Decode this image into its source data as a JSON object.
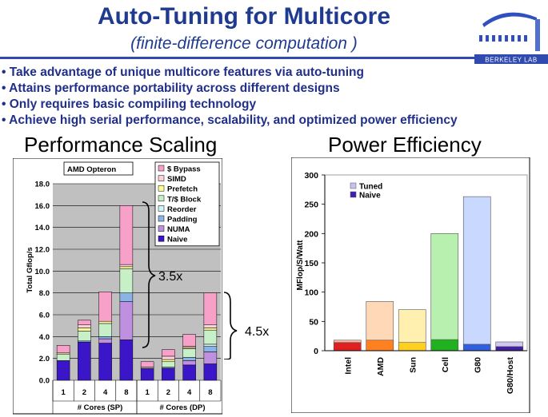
{
  "slide": {
    "title": "Auto-Tuning for Multicore",
    "subtitle": "(finite-difference computation )",
    "logo_text": "BERKELEY LAB",
    "bullets": [
      "Take advantage of unique multicore features via auto-tuning",
      "Attains performance portability across different designs",
      "Only requires basic compiling technology",
      "Achieve high serial performance, scalability, and optimized power efficiency"
    ],
    "left_panel_title": "Performance Scaling",
    "right_panel_title": "Power Efficiency"
  },
  "colors": {
    "title_blue": "#1f3b8f",
    "$ Bypass": "#f7a0c8",
    "SIMD": "#ffd0dc",
    "Prefetch": "#ffff99",
    "T/$ Block": "#c8f0c8",
    "Reorder": "#d0f4f8",
    "Padding": "#8ab4e8",
    "NUMA": "#c090e0",
    "Naive": "#3b16c8"
  },
  "chart_data": [
    {
      "type": "bar",
      "stacked": true,
      "title": "",
      "label": "AMD Opteron",
      "xlabel": "",
      "ylabel": "Total Gflop/s",
      "ylim": [
        0,
        18
      ],
      "yticks": [
        "0.0",
        "2.0",
        "4.0",
        "6.0",
        "8.0",
        "10.0",
        "12.0",
        "14.0",
        "16.0",
        "18.0"
      ],
      "categories": [
        "1",
        "2",
        "4",
        "8",
        "1",
        "2",
        "4",
        "8"
      ],
      "groups": [
        {
          "label": "# Cores (SP)",
          "categories": [
            "1",
            "2",
            "4",
            "8"
          ]
        },
        {
          "label": "# Cores (DP)",
          "categories": [
            "1",
            "2",
            "4",
            "8"
          ]
        }
      ],
      "legend_position": "top-right",
      "series": [
        {
          "name": "Naive",
          "values": [
            1.8,
            3.5,
            3.4,
            3.7,
            1.1,
            1.1,
            1.4,
            1.5
          ]
        },
        {
          "name": "NUMA",
          "values": [
            0.0,
            0.0,
            0.4,
            3.5,
            0.0,
            0.0,
            0.4,
            1.1
          ]
        },
        {
          "name": "Padding",
          "values": [
            0.0,
            0.1,
            0.2,
            0.8,
            0.0,
            0.1,
            0.3,
            0.5
          ]
        },
        {
          "name": "Reorder",
          "values": [
            0.0,
            0.0,
            0.0,
            0.0,
            0.0,
            0.0,
            0.0,
            0.2
          ]
        },
        {
          "name": "T/$ Block",
          "values": [
            0.6,
            0.9,
            1.2,
            2.2,
            0.0,
            0.5,
            0.8,
            1.3
          ]
        },
        {
          "name": "Prefetch",
          "values": [
            0.1,
            0.3,
            0.2,
            0.2,
            0.1,
            0.2,
            0.1,
            0.2
          ]
        },
        {
          "name": "SIMD",
          "values": [
            0.0,
            0.3,
            0.0,
            0.2,
            0.0,
            0.3,
            0.1,
            0.3
          ]
        },
        {
          "name": "$ Bypass",
          "values": [
            0.7,
            0.4,
            2.7,
            5.4,
            0.5,
            0.6,
            1.1,
            2.9
          ]
        }
      ],
      "annotations": [
        "3.5x",
        "4.5x"
      ]
    },
    {
      "type": "bar",
      "stacked": false,
      "title": "",
      "xlabel": "",
      "ylabel": "MFlop/S/Watt",
      "ylim": [
        0,
        300
      ],
      "yticks": [
        "0",
        "50",
        "100",
        "150",
        "200",
        "250",
        "300"
      ],
      "categories": [
        "Intel",
        "AMD",
        "Sun",
        "Cell",
        "G80",
        "G80/Host"
      ],
      "legend_position": "top-left",
      "series": [
        {
          "name": "Tuned",
          "values": [
            18,
            84,
            70,
            200,
            263,
            15
          ]
        },
        {
          "name": "Naive",
          "values": [
            14,
            18,
            14,
            19,
            11,
            7
          ]
        }
      ],
      "bar_colors": {
        "tuned": [
          "#ffb8a0",
          "#ffd8b8",
          "#fff0b0",
          "#b8f0b0",
          "#c8d8ff",
          "#d0c8f0"
        ],
        "naive": [
          "#e02020",
          "#ff8020",
          "#ffd020",
          "#20b020",
          "#3060e0",
          "#4020a0"
        ]
      }
    }
  ]
}
